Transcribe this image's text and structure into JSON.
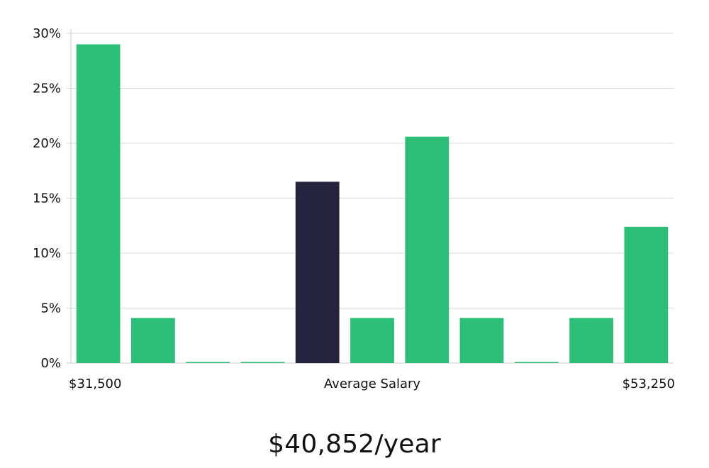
{
  "chart_data": {
    "type": "bar",
    "categories": [
      "1",
      "2",
      "3",
      "4",
      "5",
      "6",
      "7",
      "8",
      "9",
      "10",
      "11"
    ],
    "values": [
      29,
      4.1,
      0,
      0,
      16.5,
      4.1,
      20.6,
      4.1,
      0,
      4.1,
      12.4
    ],
    "highlight_index": 4,
    "ylim": [
      0,
      30
    ],
    "yticks": [
      0,
      5,
      10,
      15,
      20,
      25,
      30
    ],
    "ytick_format": "%",
    "grid": true,
    "x_labels": {
      "left": "$31,500",
      "center": "Average Salary",
      "right": "$53,250"
    },
    "colors": {
      "bar": "#2bbf77",
      "highlight": "#26233f",
      "grid": "#d9d9d9",
      "axis": "#cccccc"
    }
  },
  "summary": {
    "salary_text": "$40,852/year"
  }
}
